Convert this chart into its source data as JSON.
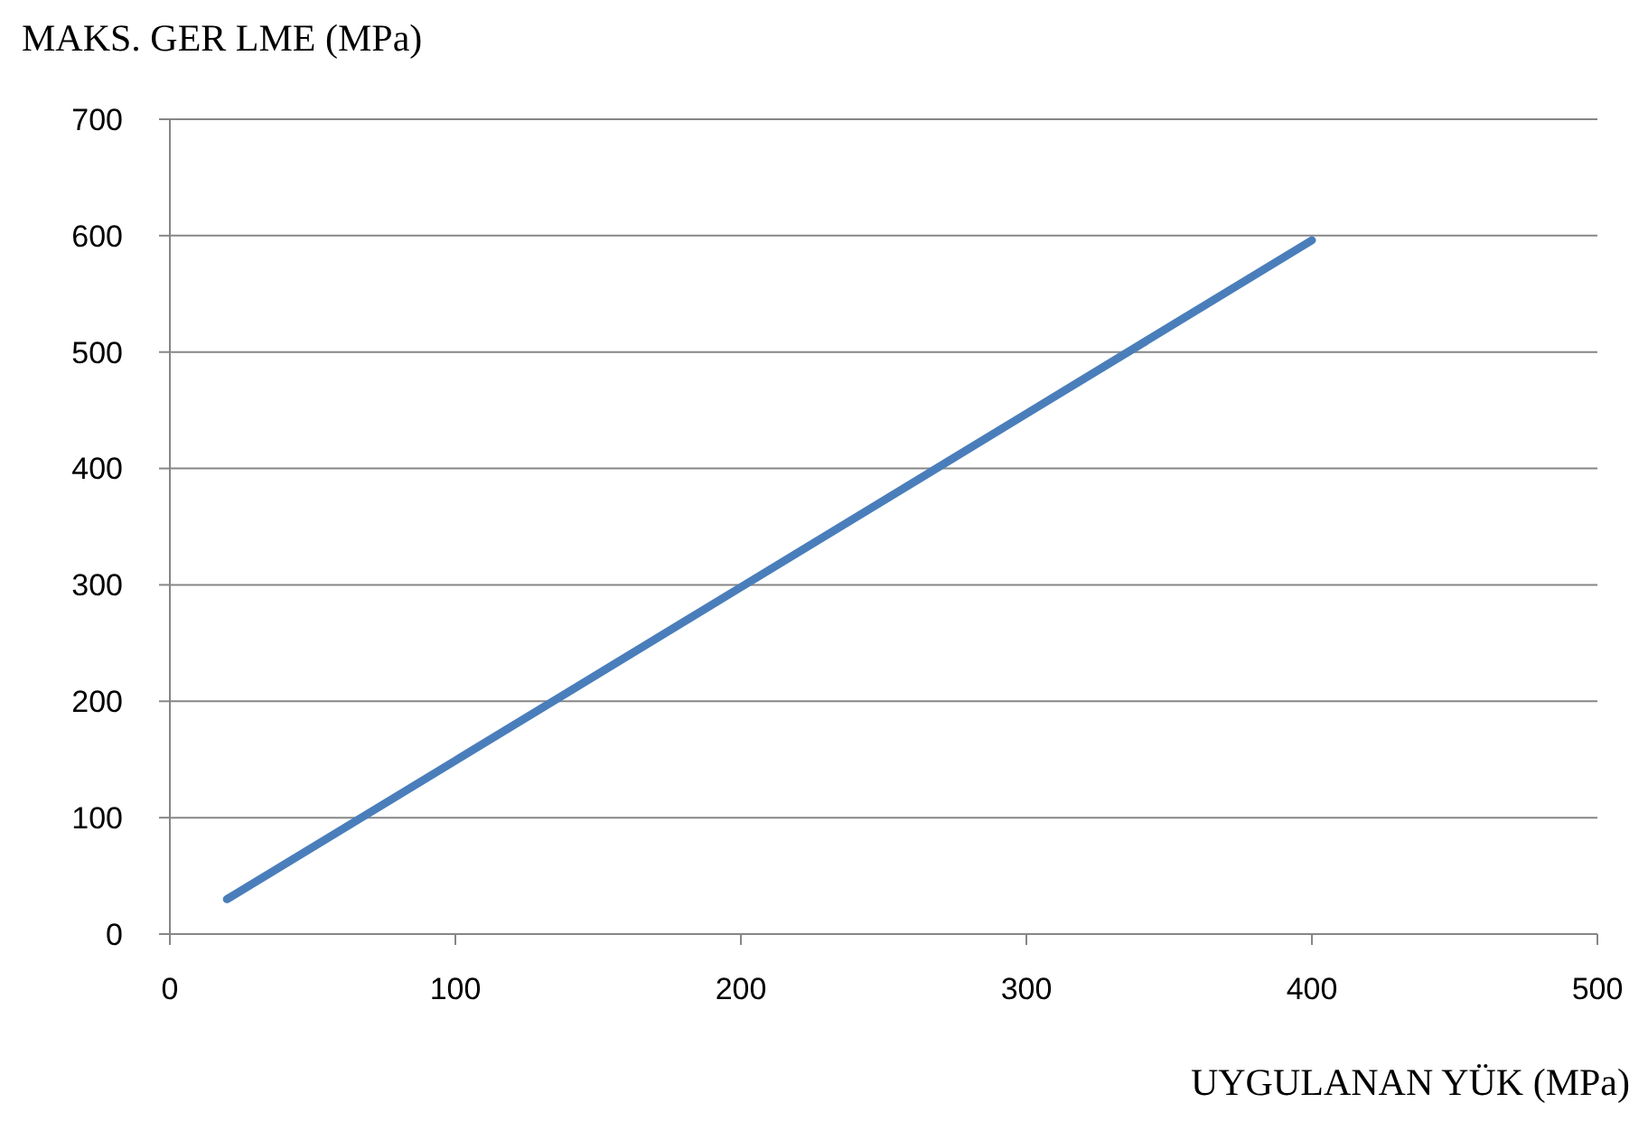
{
  "chart_data": {
    "type": "line",
    "ylabel": "MAKS. GER LME (MPa)",
    "xlabel": "UYGULANAN YÜK (MPa)",
    "x": [
      20,
      100,
      200,
      300,
      400
    ],
    "series": [
      {
        "color": "#4a7ebb",
        "values": [
          30,
          149,
          298,
          447,
          596
        ]
      }
    ],
    "xlim": [
      0,
      500
    ],
    "xticks": [
      0,
      100,
      200,
      300,
      400,
      500
    ],
    "ylim": [
      0,
      700
    ],
    "yticks": [
      0,
      100,
      200,
      300,
      400,
      500,
      600,
      700
    ],
    "grid": "y",
    "marker": "none",
    "line_style": "solid"
  }
}
